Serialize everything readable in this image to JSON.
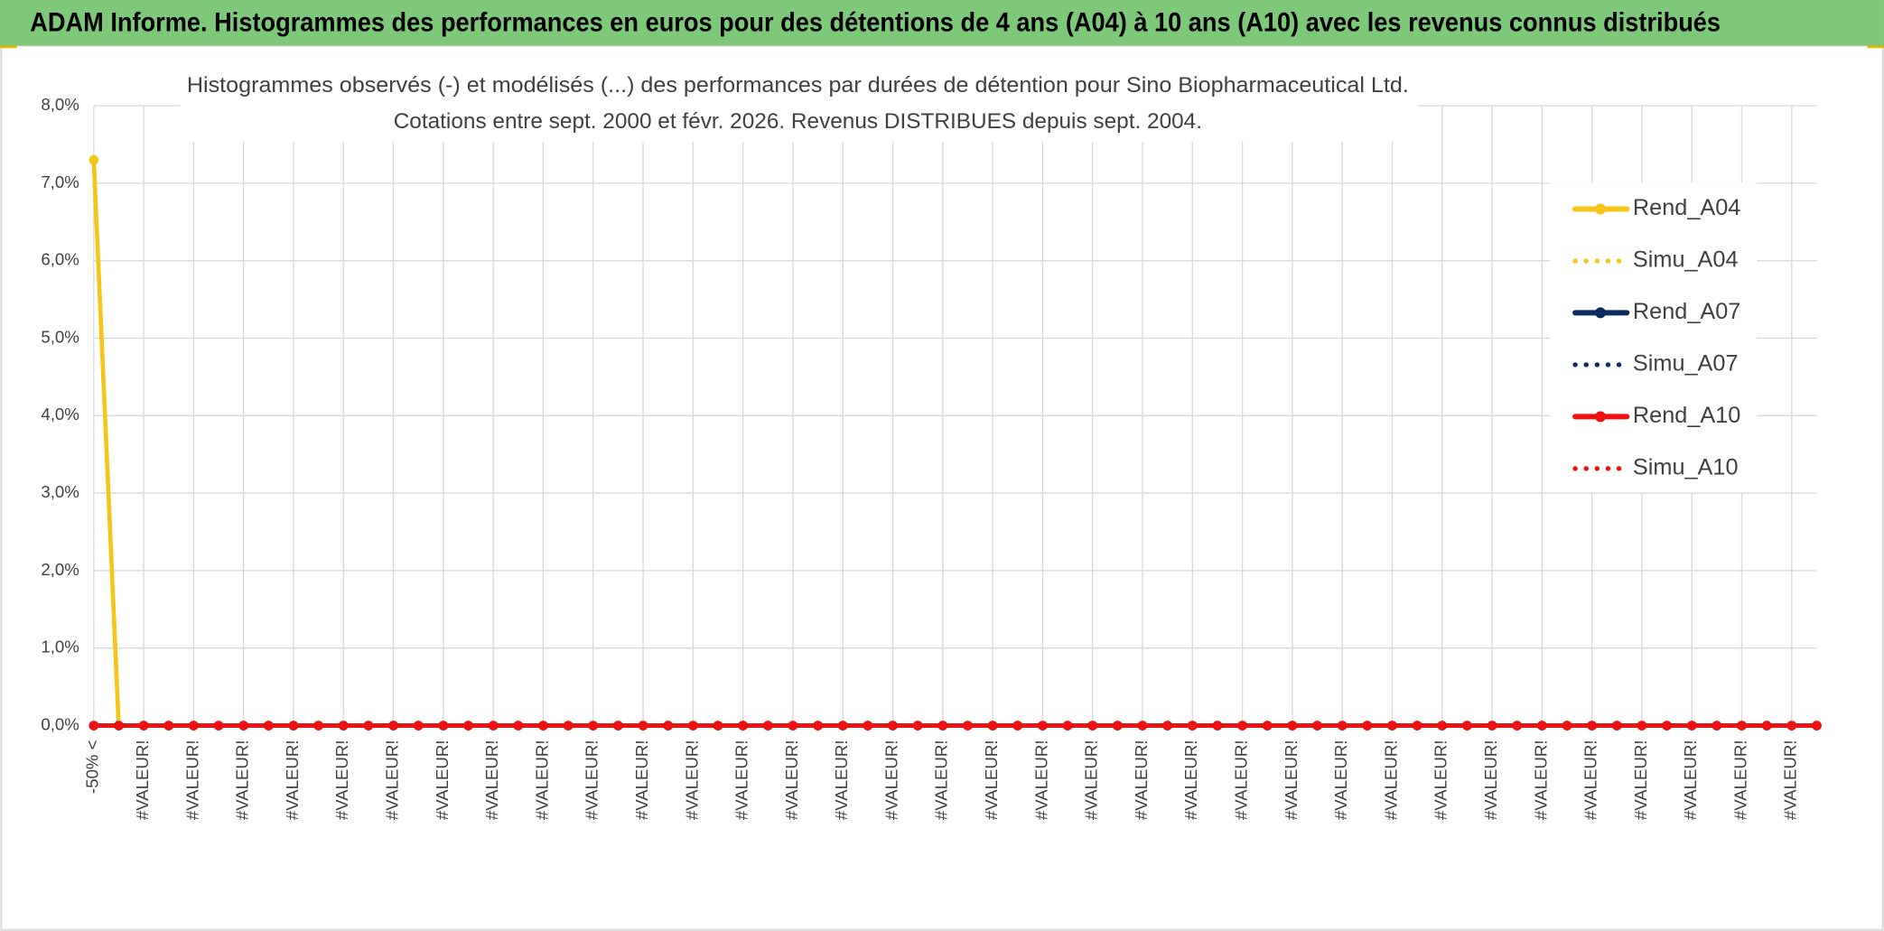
{
  "header": {
    "title": "ADAM Informe. Histogrammes des performances en euros pour des détentions de 4 ans (A04) à 10 ans (A10) avec les revenus connus distribués"
  },
  "chart_data": {
    "type": "line",
    "title": "Histogrammes observés (-) et modélisés (...) des performances par durées de détention pour Sino Biopharmaceutical Ltd.",
    "subtitle": "Cotations entre sept. 2000 et févr. 2026. Revenus DISTRIBUES depuis sept. 2004.",
    "categories": [
      "-50% <",
      null,
      "#VALEUR!",
      null,
      "#VALEUR!",
      null,
      "#VALEUR!",
      null,
      "#VALEUR!",
      null,
      "#VALEUR!",
      null,
      "#VALEUR!",
      null,
      "#VALEUR!",
      null,
      "#VALEUR!",
      null,
      "#VALEUR!",
      null,
      "#VALEUR!",
      null,
      "#VALEUR!",
      null,
      "#VALEUR!",
      null,
      "#VALEUR!",
      null,
      "#VALEUR!",
      null,
      "#VALEUR!",
      null,
      "#VALEUR!",
      null,
      "#VALEUR!",
      null,
      "#VALEUR!",
      null,
      "#VALEUR!",
      null,
      "#VALEUR!",
      null,
      "#VALEUR!",
      null,
      "#VALEUR!",
      null,
      "#VALEUR!",
      null,
      "#VALEUR!",
      null,
      "#VALEUR!",
      null,
      "#VALEUR!",
      null,
      "#VALEUR!",
      null,
      "#VALEUR!",
      null,
      "#VALEUR!",
      null,
      "#VALEUR!",
      null,
      "#VALEUR!",
      null,
      "#VALEUR!",
      null,
      "#VALEUR!",
      null,
      "#VALEUR!",
      null
    ],
    "series": [
      {
        "name": "Rend_A04",
        "color": "#f5c518",
        "style": "solid",
        "markers": true,
        "values": [
          7.3,
          0,
          0,
          0,
          0,
          0,
          0,
          0,
          0,
          0,
          0,
          0,
          0,
          0,
          0,
          0,
          0,
          0,
          0,
          0,
          0,
          0,
          0,
          0,
          0,
          0,
          0,
          0,
          0,
          0,
          0,
          0,
          0,
          0,
          0,
          0,
          0,
          0,
          0,
          0,
          0,
          0,
          0,
          0,
          0,
          0,
          0,
          0,
          0,
          0,
          0,
          0,
          0,
          0,
          0,
          0,
          0,
          0,
          0,
          0,
          0,
          0,
          0,
          0,
          0,
          0,
          0,
          0,
          0,
          0
        ]
      },
      {
        "name": "Simu_A04",
        "color": "#f5c518",
        "style": "dotted",
        "markers": false,
        "values": [
          0,
          0,
          0,
          0,
          0,
          0,
          0,
          0,
          0,
          0,
          0,
          0,
          0,
          0,
          0,
          0,
          0,
          0,
          0,
          0,
          0,
          0,
          0,
          0,
          0,
          0,
          0,
          0,
          0,
          0,
          0,
          0,
          0,
          0,
          0,
          0,
          0,
          0,
          0,
          0,
          0,
          0,
          0,
          0,
          0,
          0,
          0,
          0,
          0,
          0,
          0,
          0,
          0,
          0,
          0,
          0,
          0,
          0,
          0,
          0,
          0,
          0,
          0,
          0,
          0,
          0,
          0,
          0,
          0,
          0
        ]
      },
      {
        "name": "Rend_A07",
        "color": "#0d2a5e",
        "style": "solid",
        "markers": true,
        "values": [
          0,
          0,
          0,
          0,
          0,
          0,
          0,
          0,
          0,
          0,
          0,
          0,
          0,
          0,
          0,
          0,
          0,
          0,
          0,
          0,
          0,
          0,
          0,
          0,
          0,
          0,
          0,
          0,
          0,
          0,
          0,
          0,
          0,
          0,
          0,
          0,
          0,
          0,
          0,
          0,
          0,
          0,
          0,
          0,
          0,
          0,
          0,
          0,
          0,
          0,
          0,
          0,
          0,
          0,
          0,
          0,
          0,
          0,
          0,
          0,
          0,
          0,
          0,
          0,
          0,
          0,
          0,
          0,
          0,
          0
        ]
      },
      {
        "name": "Simu_A07",
        "color": "#0d2a5e",
        "style": "dotted",
        "markers": false,
        "values": [
          0,
          0,
          0,
          0,
          0,
          0,
          0,
          0,
          0,
          0,
          0,
          0,
          0,
          0,
          0,
          0,
          0,
          0,
          0,
          0,
          0,
          0,
          0,
          0,
          0,
          0,
          0,
          0,
          0,
          0,
          0,
          0,
          0,
          0,
          0,
          0,
          0,
          0,
          0,
          0,
          0,
          0,
          0,
          0,
          0,
          0,
          0,
          0,
          0,
          0,
          0,
          0,
          0,
          0,
          0,
          0,
          0,
          0,
          0,
          0,
          0,
          0,
          0,
          0,
          0,
          0,
          0,
          0,
          0,
          0
        ]
      },
      {
        "name": "Rend_A10",
        "color": "#ee1111",
        "style": "solid",
        "markers": true,
        "values": [
          0,
          0,
          0,
          0,
          0,
          0,
          0,
          0,
          0,
          0,
          0,
          0,
          0,
          0,
          0,
          0,
          0,
          0,
          0,
          0,
          0,
          0,
          0,
          0,
          0,
          0,
          0,
          0,
          0,
          0,
          0,
          0,
          0,
          0,
          0,
          0,
          0,
          0,
          0,
          0,
          0,
          0,
          0,
          0,
          0,
          0,
          0,
          0,
          0,
          0,
          0,
          0,
          0,
          0,
          0,
          0,
          0,
          0,
          0,
          0,
          0,
          0,
          0,
          0,
          0,
          0,
          0,
          0,
          0,
          0
        ]
      },
      {
        "name": "Simu_A10",
        "color": "#ee1111",
        "style": "dotted",
        "markers": false,
        "values": [
          0,
          0,
          0,
          0,
          0,
          0,
          0,
          0,
          0,
          0,
          0,
          0,
          0,
          0,
          0,
          0,
          0,
          0,
          0,
          0,
          0,
          0,
          0,
          0,
          0,
          0,
          0,
          0,
          0,
          0,
          0,
          0,
          0,
          0,
          0,
          0,
          0,
          0,
          0,
          0,
          0,
          0,
          0,
          0,
          0,
          0,
          0,
          0,
          0,
          0,
          0,
          0,
          0,
          0,
          0,
          0,
          0,
          0,
          0,
          0,
          0,
          0,
          0,
          0,
          0,
          0,
          0,
          0,
          0,
          0
        ]
      }
    ],
    "ylim": [
      0,
      8
    ],
    "yticks": [
      {
        "value": 0,
        "label": "0,0%"
      },
      {
        "value": 1,
        "label": "1,0%"
      },
      {
        "value": 2,
        "label": "2,0%"
      },
      {
        "value": 3,
        "label": "3,0%"
      },
      {
        "value": 4,
        "label": "4,0%"
      },
      {
        "value": 5,
        "label": "5,0%"
      },
      {
        "value": 6,
        "label": "6,0%"
      },
      {
        "value": 7,
        "label": "7,0%"
      },
      {
        "value": 8,
        "label": "8,0%"
      }
    ],
    "grid": true,
    "legend": "right"
  }
}
